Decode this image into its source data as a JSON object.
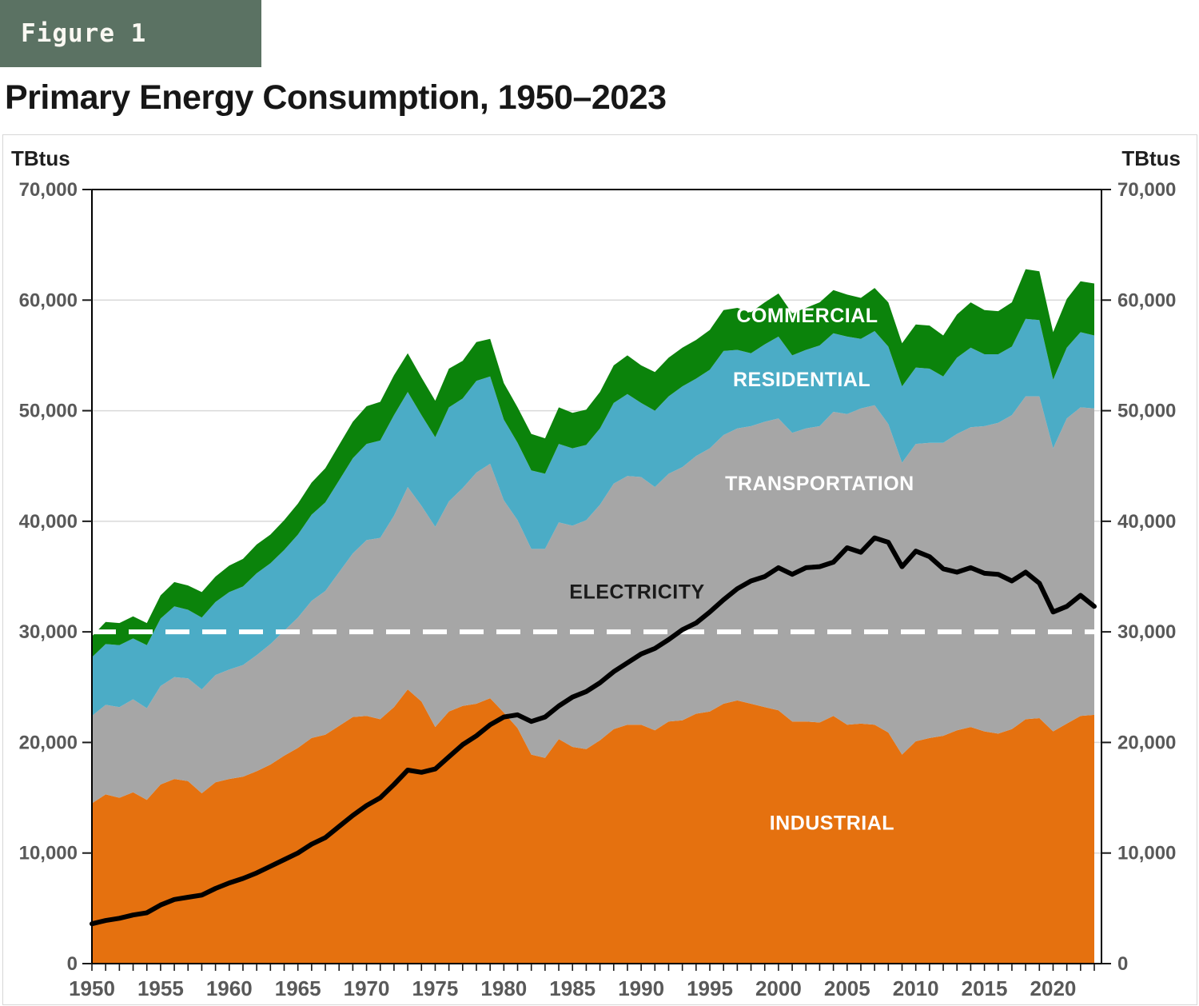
{
  "figure_label": "Figure 1",
  "title": "Primary Energy Consumption, 1950–2023",
  "colors": {
    "header_box": "#5b7263",
    "industrial": "#E5710F",
    "transportation": "#A6A6A6",
    "residential": "#4BACC6",
    "commercial": "#0B830B",
    "electricity_line": "#000000",
    "reference_line": "#FFFFFF",
    "tick_text": "#595959",
    "grid": "#D9D9D9",
    "frame": "#000000"
  },
  "chart_data": {
    "type": "area",
    "subtype": "stacked-area-with-line",
    "title": "Primary Energy Consumption, 1950–2023",
    "y_unit": "TBtus",
    "ylim": [
      0,
      70000
    ],
    "grid": "horizontal",
    "y_tick_values": [
      0,
      10000,
      20000,
      30000,
      40000,
      50000,
      60000,
      70000
    ],
    "y_tick_labels": [
      "0",
      "10,000",
      "20,000",
      "30,000",
      "40,000",
      "50,000",
      "60,000",
      "70,000"
    ],
    "x_tick_label_years": [
      1950,
      1955,
      1960,
      1965,
      1970,
      1975,
      1980,
      1985,
      1990,
      1995,
      2000,
      2005,
      2010,
      2015,
      2020
    ],
    "x": [
      1950,
      1951,
      1952,
      1953,
      1954,
      1955,
      1956,
      1957,
      1958,
      1959,
      1960,
      1961,
      1962,
      1963,
      1964,
      1965,
      1966,
      1967,
      1968,
      1969,
      1970,
      1971,
      1972,
      1973,
      1974,
      1975,
      1976,
      1977,
      1978,
      1979,
      1980,
      1981,
      1982,
      1983,
      1984,
      1985,
      1986,
      1987,
      1988,
      1989,
      1990,
      1991,
      1992,
      1993,
      1994,
      1995,
      1996,
      1997,
      1998,
      1999,
      2000,
      2001,
      2002,
      2003,
      2004,
      2005,
      2006,
      2007,
      2008,
      2009,
      2010,
      2011,
      2012,
      2013,
      2014,
      2015,
      2016,
      2017,
      2018,
      2019,
      2020,
      2021,
      2022,
      2023
    ],
    "series": [
      {
        "name": "INDUSTRIAL",
        "color": "#E5710F",
        "values": [
          14500,
          15300,
          15000,
          15500,
          14800,
          16200,
          16700,
          16500,
          15400,
          16400,
          16700,
          16900,
          17400,
          18000,
          18800,
          19500,
          20400,
          20700,
          21500,
          22300,
          22400,
          22100,
          23200,
          24800,
          23700,
          21400,
          22800,
          23300,
          23500,
          24000,
          22700,
          21300,
          18900,
          18600,
          20300,
          19600,
          19400,
          20200,
          21200,
          21600,
          21600,
          21100,
          21900,
          22000,
          22600,
          22800,
          23500,
          23800,
          23500,
          23200,
          22900,
          21900,
          21900,
          21800,
          22400,
          21600,
          21700,
          21600,
          20900,
          18900,
          20100,
          20400,
          20600,
          21100,
          21400,
          21000,
          20800,
          21200,
          22100,
          22200,
          21000,
          21700,
          22400,
          22500
        ]
      },
      {
        "name": "TRANSPORTATION",
        "color": "#A6A6A6",
        "values": [
          7900,
          8100,
          8200,
          8400,
          8300,
          8900,
          9200,
          9300,
          9400,
          9700,
          9900,
          10100,
          10500,
          10900,
          11300,
          11800,
          12400,
          13000,
          13900,
          14800,
          15900,
          16400,
          17300,
          18300,
          17700,
          18100,
          19000,
          19700,
          20900,
          21200,
          19200,
          18800,
          18600,
          18900,
          19600,
          20000,
          20700,
          21300,
          22200,
          22500,
          22400,
          22000,
          22400,
          22900,
          23300,
          23800,
          24300,
          24600,
          25100,
          25800,
          26400,
          26100,
          26500,
          26800,
          27500,
          28100,
          28500,
          28900,
          27900,
          26400,
          26900,
          26700,
          26500,
          26800,
          27100,
          27600,
          28100,
          28400,
          29200,
          29100,
          25600,
          27600,
          27900,
          27700
        ]
      },
      {
        "name": "RESIDENTIAL",
        "color": "#4BACC6",
        "values": [
          5300,
          5500,
          5600,
          5500,
          5700,
          6100,
          6400,
          6200,
          6500,
          6600,
          7000,
          7100,
          7400,
          7300,
          7300,
          7500,
          7800,
          8000,
          8300,
          8600,
          8700,
          8800,
          9100,
          8600,
          8200,
          8100,
          8500,
          8100,
          8300,
          7900,
          7300,
          7000,
          7100,
          6800,
          7100,
          7000,
          6800,
          6900,
          7300,
          7400,
          6700,
          6900,
          7000,
          7300,
          7000,
          7100,
          7600,
          7100,
          6600,
          7000,
          7400,
          7000,
          7100,
          7300,
          7100,
          7000,
          6300,
          6700,
          7000,
          6900,
          6900,
          6700,
          6000,
          6900,
          7200,
          6500,
          6200,
          6200,
          7000,
          6900,
          6200,
          6400,
          6800,
          6600
        ]
      },
      {
        "name": "COMMERCIAL",
        "color": "#0B830B",
        "values": [
          1900,
          2000,
          2000,
          2000,
          2000,
          2100,
          2200,
          2200,
          2300,
          2300,
          2400,
          2500,
          2600,
          2600,
          2700,
          2800,
          2900,
          3100,
          3200,
          3300,
          3400,
          3500,
          3600,
          3500,
          3400,
          3300,
          3500,
          3400,
          3500,
          3400,
          3300,
          3200,
          3300,
          3200,
          3300,
          3200,
          3200,
          3300,
          3400,
          3500,
          3400,
          3500,
          3500,
          3500,
          3500,
          3600,
          3700,
          3800,
          3700,
          3800,
          3900,
          3800,
          3800,
          3900,
          3900,
          3800,
          3700,
          3900,
          4000,
          3900,
          3900,
          3900,
          3700,
          3900,
          4100,
          4000,
          3900,
          4000,
          4500,
          4400,
          4300,
          4400,
          4600,
          4700
        ]
      }
    ],
    "line_series": {
      "name": "ELECTRICITY",
      "color": "#000000",
      "values": [
        3600,
        3900,
        4100,
        4400,
        4600,
        5300,
        5800,
        6000,
        6200,
        6800,
        7300,
        7700,
        8200,
        8800,
        9400,
        10000,
        10800,
        11400,
        12400,
        13400,
        14300,
        15000,
        16200,
        17500,
        17300,
        17600,
        18700,
        19800,
        20600,
        21600,
        22300,
        22500,
        21900,
        22300,
        23300,
        24100,
        24600,
        25400,
        26400,
        27200,
        28000,
        28500,
        29300,
        30200,
        30800,
        31800,
        32900,
        33900,
        34600,
        35000,
        35800,
        35200,
        35800,
        35900,
        36300,
        37600,
        37200,
        38500,
        38100,
        35900,
        37300,
        36800,
        35700,
        35400,
        35800,
        35300,
        35200,
        34600,
        35400,
        34400,
        31800,
        32300,
        33300,
        32300
      ]
    },
    "reference_line": {
      "value": 30000,
      "color": "#FFFFFF",
      "style": "dashed"
    },
    "annotations": [
      {
        "text": "COMMERCIAL",
        "x": 2002.1,
        "y": 58000,
        "color": "#FFFFFF"
      },
      {
        "text": "RESIDENTIAL",
        "x": 2001.7,
        "y": 52200,
        "color": "#FFFFFF"
      },
      {
        "text": "TRANSPORTATION",
        "x": 2003.0,
        "y": 42800,
        "color": "#FFFFFF"
      },
      {
        "text": "ELECTRICITY",
        "x": 1989.7,
        "y": 33000,
        "color": "#1A1A1A"
      },
      {
        "text": "INDUSTRIAL",
        "x": 2003.9,
        "y": 12100,
        "color": "#FFFFFF"
      }
    ],
    "legend_position": "in-plot-labels"
  }
}
